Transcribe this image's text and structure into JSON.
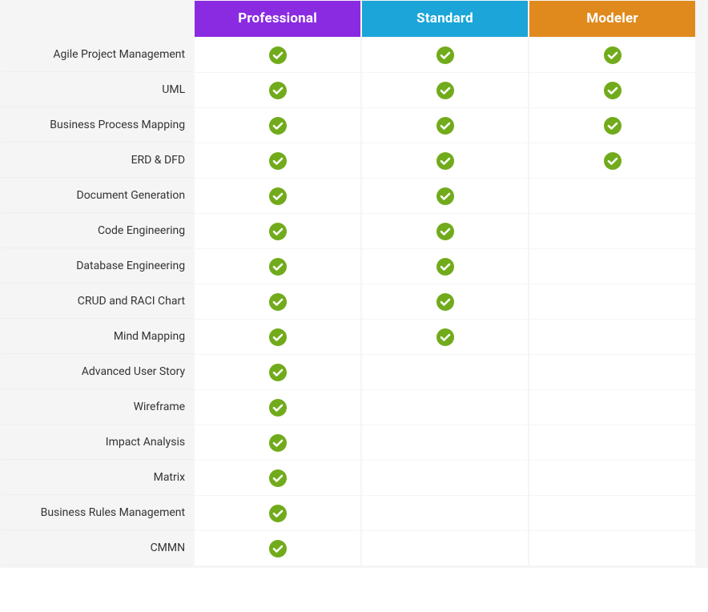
{
  "table": {
    "type": "comparison-table",
    "background_color": "#f5f5f5",
    "cell_background": "#ffffff",
    "feature_text_color": "#333333",
    "feature_fontsize": 14,
    "header_fontsize": 17,
    "header_text_color": "#ffffff",
    "check_color": "#71ab1b",
    "check_tick_color": "#ffffff",
    "tiers": [
      {
        "label": "Professional",
        "color": "#8a2be2"
      },
      {
        "label": "Standard",
        "color": "#1ba5d8"
      },
      {
        "label": "Modeler",
        "color": "#e08a1e"
      }
    ],
    "features": [
      {
        "label": "Agile Project Management",
        "checks": [
          true,
          true,
          true
        ]
      },
      {
        "label": "UML",
        "checks": [
          true,
          true,
          true
        ]
      },
      {
        "label": "Business Process Mapping",
        "checks": [
          true,
          true,
          true
        ]
      },
      {
        "label": "ERD & DFD",
        "checks": [
          true,
          true,
          true
        ]
      },
      {
        "label": "Document Generation",
        "checks": [
          true,
          true,
          false
        ]
      },
      {
        "label": "Code Engineering",
        "checks": [
          true,
          true,
          false
        ]
      },
      {
        "label": "Database Engineering",
        "checks": [
          true,
          true,
          false
        ]
      },
      {
        "label": "CRUD and RACI Chart",
        "checks": [
          true,
          true,
          false
        ]
      },
      {
        "label": "Mind Mapping",
        "checks": [
          true,
          true,
          false
        ]
      },
      {
        "label": "Advanced User Story",
        "checks": [
          true,
          false,
          false
        ]
      },
      {
        "label": "Wireframe",
        "checks": [
          true,
          false,
          false
        ]
      },
      {
        "label": "Impact Analysis",
        "checks": [
          true,
          false,
          false
        ]
      },
      {
        "label": "Matrix",
        "checks": [
          true,
          false,
          false
        ]
      },
      {
        "label": "Business Rules Management",
        "checks": [
          true,
          false,
          false
        ]
      },
      {
        "label": "CMMN",
        "checks": [
          true,
          false,
          false
        ]
      }
    ]
  }
}
